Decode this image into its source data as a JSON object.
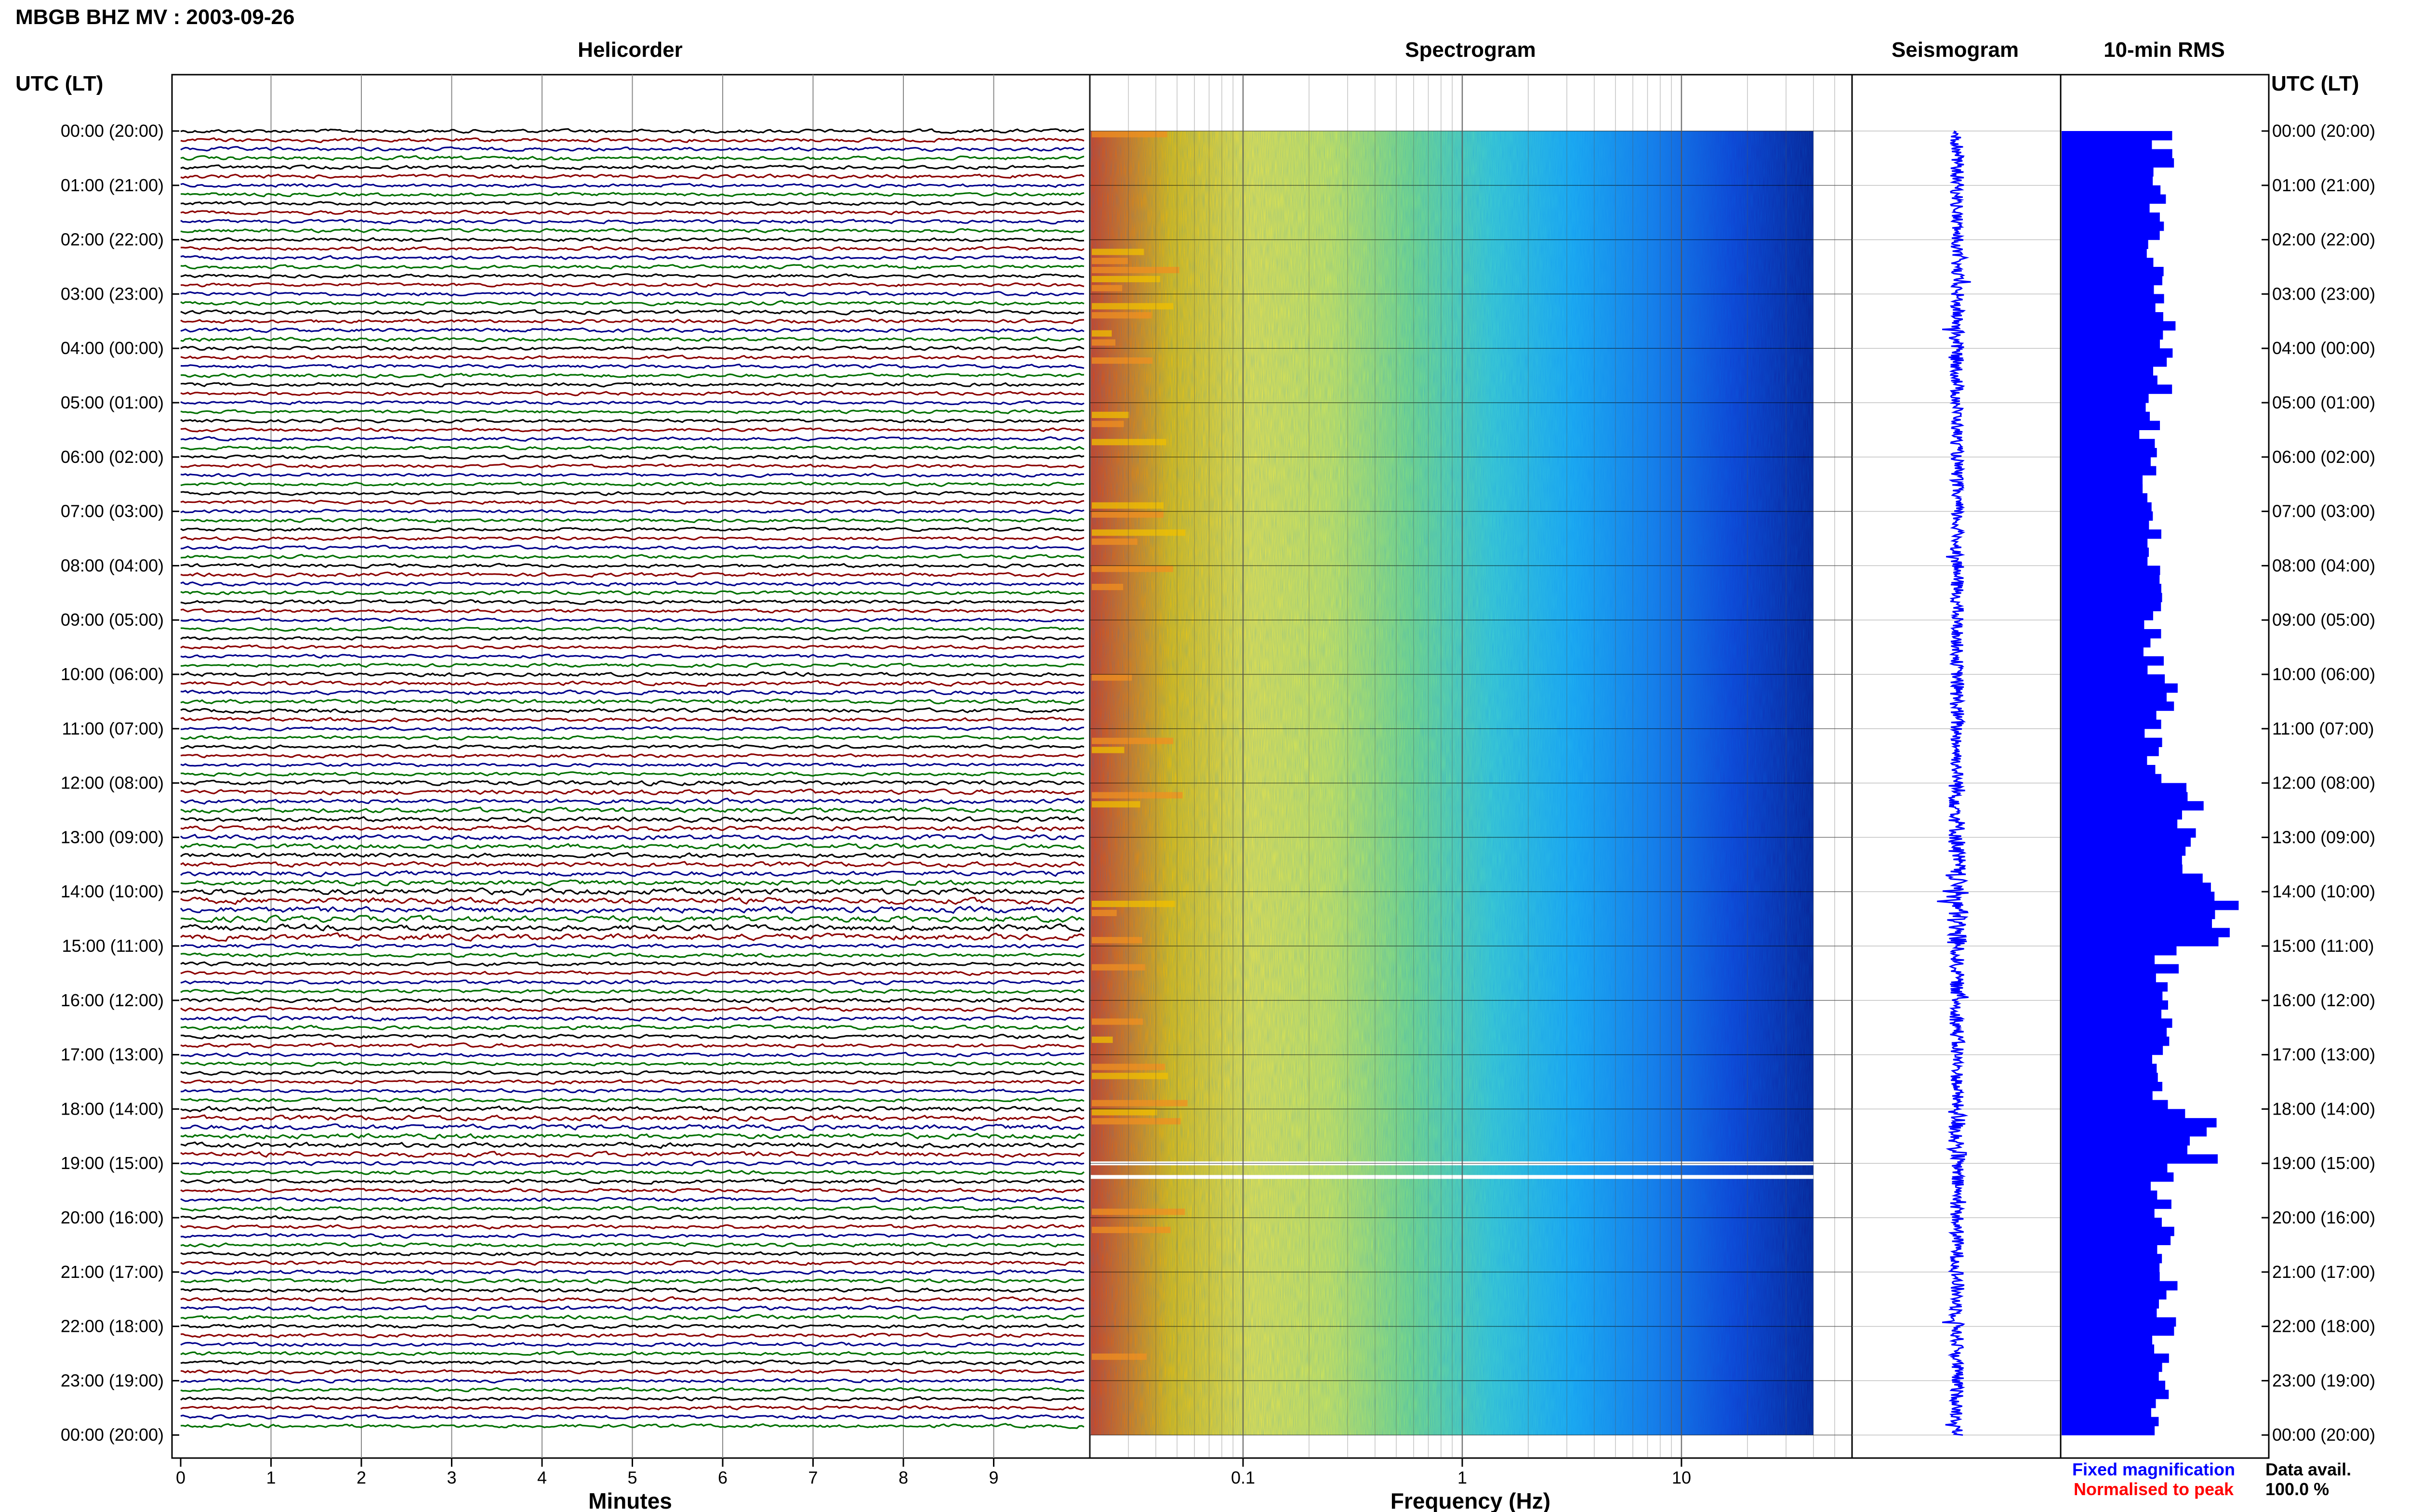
{
  "title": "MBGB BHZ MV : 2003-09-26",
  "panels": {
    "helicorder": "Helicorder",
    "spectrogram": "Spectrogram",
    "seismogram": "Seismogram",
    "rms": "10-min RMS"
  },
  "time_axis_header": "UTC (LT)",
  "legend": {
    "fixed": "Fixed magnification",
    "normalised": "Normalised to peak",
    "fixed_color": "#0000ff",
    "normalised_color": "#ff0000"
  },
  "data_avail": {
    "label": "Data avail.",
    "value": "100.0 %"
  },
  "colors": {
    "trace_cycle": [
      "#000000",
      "#8b0000",
      "#00008b",
      "#007000"
    ],
    "rms_bar": "#0000ff",
    "seismogram": "#0000ff"
  },
  "chart_data": [
    {
      "type": "line",
      "name": "helicorder",
      "xlabel": "Minutes",
      "xlim": [
        0,
        10
      ],
      "x_ticks": [
        "0",
        "1",
        "2",
        "3",
        "4",
        "5",
        "6",
        "7",
        "8",
        "9"
      ],
      "rows_per_hour": 6,
      "row_minutes": 10,
      "y_ticks": [
        "00:00 (20:00)",
        "01:00 (21:00)",
        "02:00 (22:00)",
        "03:00 (23:00)",
        "04:00 (00:00)",
        "05:00 (01:00)",
        "06:00 (02:00)",
        "07:00 (03:00)",
        "08:00 (04:00)",
        "09:00 (05:00)",
        "10:00 (06:00)",
        "11:00 (07:00)",
        "12:00 (08:00)",
        "13:00 (09:00)",
        "14:00 (10:00)",
        "15:00 (11:00)",
        "16:00 (12:00)",
        "17:00 (13:00)",
        "18:00 (14:00)",
        "19:00 (15:00)",
        "20:00 (16:00)",
        "21:00 (17:00)",
        "22:00 (18:00)",
        "23:00 (19:00)",
        "00:00 (20:00)"
      ]
    },
    {
      "type": "heatmap",
      "name": "spectrogram",
      "xlabel": "Frequency (Hz)",
      "x_scale": "log",
      "xlim": [
        0.02,
        60
      ],
      "x_ticks": [
        "0.1",
        "1",
        "10"
      ],
      "data_end_hz": 40,
      "colormap": [
        "#e04010",
        "#f0c000",
        "#f4e840",
        "#d8ec50",
        "#80e080",
        "#40d0d0",
        "#20b0f0",
        "#1a80e8",
        "#1040d0",
        "#081c8c"
      ],
      "gap_hours": [
        19.0,
        19.25
      ]
    },
    {
      "type": "bar",
      "name": "rms",
      "orientation": "horizontal",
      "bin_minutes": 10,
      "hourly_values": [
        0.8,
        0.75,
        0.74,
        0.81,
        0.78,
        0.7,
        0.73,
        0.73,
        0.79,
        0.72,
        0.85,
        0.73,
        1.0,
        1.06,
        1.32,
        0.82,
        0.86,
        0.75,
        1.1,
        0.8,
        0.8,
        0.84,
        0.8,
        0.75
      ]
    }
  ]
}
